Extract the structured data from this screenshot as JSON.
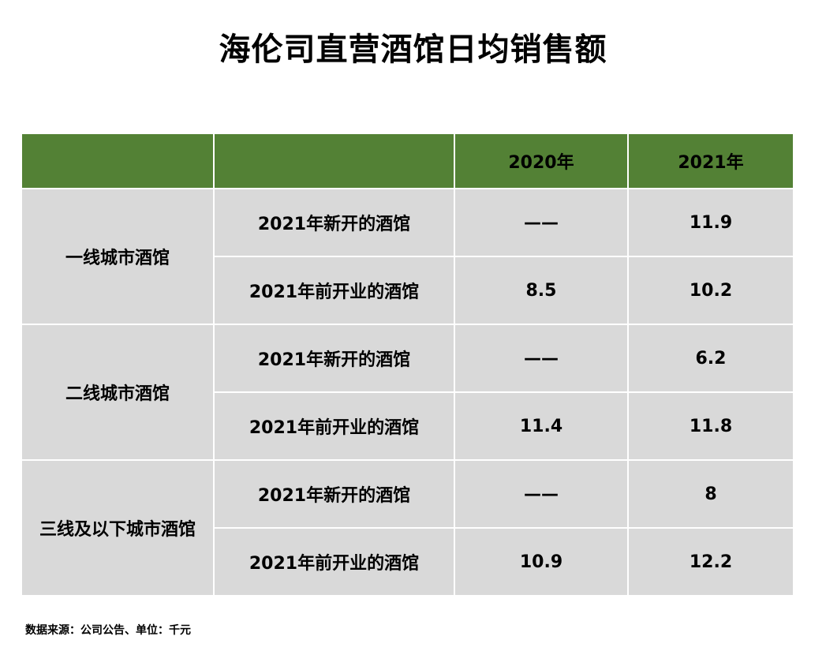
{
  "title": "海伦司直营酒馆日均销售额",
  "table": {
    "headers": [
      "",
      "",
      "2020年",
      "2021年"
    ],
    "groups": [
      {
        "name": "一线城市酒馆",
        "rows": [
          {
            "label": "2021年新开的酒馆",
            "y2020": "——",
            "y2021": "11.9"
          },
          {
            "label": "2021年前开业的酒馆",
            "y2020": "8.5",
            "y2021": "10.2"
          }
        ]
      },
      {
        "name": "二线城市酒馆",
        "rows": [
          {
            "label": "2021年新开的酒馆",
            "y2020": "——",
            "y2021": "6.2"
          },
          {
            "label": "2021年前开业的酒馆",
            "y2020": "11.4",
            "y2021": "11.8"
          }
        ]
      },
      {
        "name": "三线及以下城市酒馆",
        "rows": [
          {
            "label": "2021年新开的酒馆",
            "y2020": "——",
            "y2021": "8"
          },
          {
            "label": "2021年前开业的酒馆",
            "y2020": "10.9",
            "y2021": "12.2"
          }
        ]
      }
    ]
  },
  "source_note": "数据来源：公司公告、单位：千元",
  "colors": {
    "header_bg": "#538135",
    "cell_bg": "#d9d9d9",
    "grid_line": "#ffffff"
  }
}
